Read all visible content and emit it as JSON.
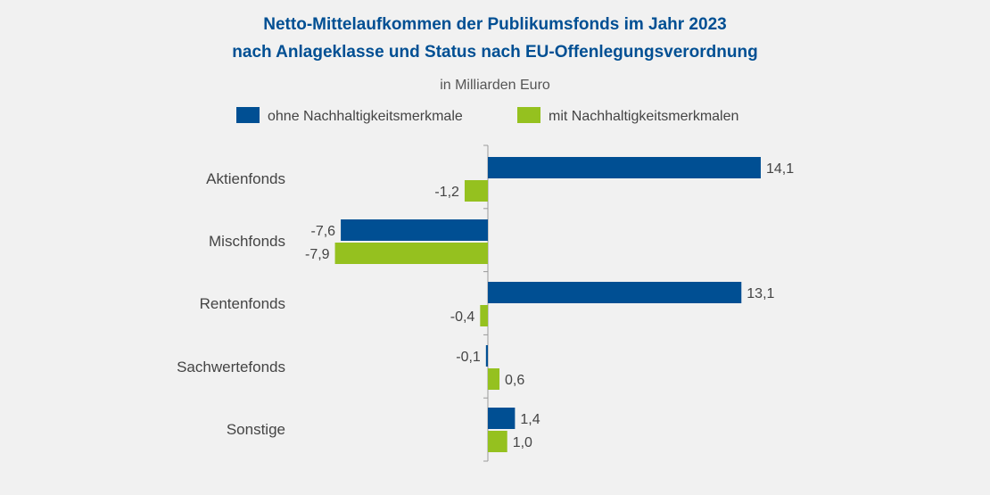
{
  "chart_data": {
    "type": "bar",
    "orientation": "horizontal",
    "title": "Netto-Mittelaufkommen der Publikumsfonds im Jahr 2023",
    "title_line2": "nach Anlageklasse und Status nach EU-Offenlegungsverordnung",
    "subtitle": "in Milliarden Euro",
    "categories": [
      "Aktienfonds",
      "Mischfonds",
      "Rentenfonds",
      "Sachwertefonds",
      "Sonstige"
    ],
    "series": [
      {
        "name": "ohne Nachhaltigkeitsmerkmale",
        "color": "#004f93",
        "values": [
          14.1,
          -7.6,
          13.1,
          -0.1,
          1.4
        ],
        "labels": [
          "14,1",
          "-7,6",
          "13,1",
          "-0,1",
          "1,4"
        ]
      },
      {
        "name": "mit Nachhaltigkeitsmerkmalen",
        "color": "#95c11f",
        "values": [
          -1.2,
          -7.9,
          -0.4,
          0.6,
          1.0
        ],
        "labels": [
          "-1,2",
          "-7,9",
          "-0,4",
          "0,6",
          "1,0"
        ]
      }
    ],
    "legend_position": "top",
    "grid": false
  }
}
